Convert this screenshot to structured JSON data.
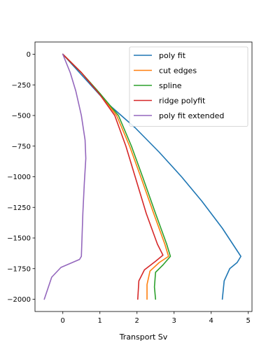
{
  "chart_data": {
    "type": "line",
    "title": "",
    "xlabel": "Transport Sv",
    "ylabel": "",
    "xlim": [
      -0.75,
      5.1
    ],
    "ylim": [
      -2100,
      100
    ],
    "xticks": [
      0,
      1,
      2,
      3,
      4,
      5
    ],
    "xtick_labels": [
      "0",
      "1",
      "2",
      "3",
      "4",
      "5"
    ],
    "yticks": [
      0,
      -250,
      -500,
      -750,
      -1000,
      -1250,
      -1500,
      -1750,
      -2000
    ],
    "ytick_labels": [
      "0",
      "−250",
      "−500",
      "−750",
      "−1000",
      "−1250",
      "−1500",
      "−1750",
      "−2000"
    ],
    "legend_position": "top-right",
    "series": [
      {
        "name": "poly fit",
        "color": "#1f77b4",
        "points": [
          [
            0,
            0
          ],
          [
            0.6,
            -200
          ],
          [
            1.2,
            -400
          ],
          [
            1.95,
            -600
          ],
          [
            2.6,
            -800
          ],
          [
            3.2,
            -1000
          ],
          [
            3.75,
            -1200
          ],
          [
            4.3,
            -1420
          ],
          [
            4.8,
            -1650
          ],
          [
            4.7,
            -1700
          ],
          [
            4.5,
            -1750
          ],
          [
            4.35,
            -1850
          ],
          [
            4.3,
            -2000
          ]
        ]
      },
      {
        "name": "cut edges",
        "color": "#ff7f0e",
        "points": [
          [
            0,
            0
          ],
          [
            0.5,
            -150
          ],
          [
            1.0,
            -320
          ],
          [
            1.45,
            -500
          ],
          [
            1.8,
            -750
          ],
          [
            2.1,
            -1000
          ],
          [
            2.45,
            -1300
          ],
          [
            2.75,
            -1550
          ],
          [
            2.85,
            -1650
          ],
          [
            2.6,
            -1700
          ],
          [
            2.35,
            -1770
          ],
          [
            2.27,
            -1880
          ],
          [
            2.27,
            -2000
          ]
        ]
      },
      {
        "name": "spline",
        "color": "#2ca02c",
        "points": [
          [
            0,
            0
          ],
          [
            0.5,
            -150
          ],
          [
            1.0,
            -320
          ],
          [
            1.5,
            -500
          ],
          [
            1.85,
            -750
          ],
          [
            2.15,
            -1000
          ],
          [
            2.5,
            -1300
          ],
          [
            2.8,
            -1550
          ],
          [
            2.9,
            -1650
          ],
          [
            2.7,
            -1720
          ],
          [
            2.5,
            -1780
          ],
          [
            2.47,
            -1900
          ],
          [
            2.5,
            -2000
          ]
        ]
      },
      {
        "name": "ridge polyfit",
        "color": "#d62728",
        "points": [
          [
            0,
            0
          ],
          [
            0.5,
            -150
          ],
          [
            1.0,
            -330
          ],
          [
            1.4,
            -500
          ],
          [
            1.7,
            -750
          ],
          [
            1.95,
            -1000
          ],
          [
            2.25,
            -1300
          ],
          [
            2.55,
            -1550
          ],
          [
            2.7,
            -1640
          ],
          [
            2.5,
            -1690
          ],
          [
            2.2,
            -1760
          ],
          [
            2.05,
            -1850
          ],
          [
            2.02,
            -2000
          ]
        ]
      },
      {
        "name": "poly fit extended",
        "color": "#9467bd",
        "points": [
          [
            0,
            0
          ],
          [
            0.2,
            -150
          ],
          [
            0.35,
            -300
          ],
          [
            0.5,
            -500
          ],
          [
            0.6,
            -700
          ],
          [
            0.62,
            -850
          ],
          [
            0.58,
            -1050
          ],
          [
            0.54,
            -1300
          ],
          [
            0.5,
            -1650
          ],
          [
            0.45,
            -1675
          ],
          [
            -0.05,
            -1740
          ],
          [
            -0.3,
            -1820
          ],
          [
            -0.5,
            -2000
          ]
        ]
      }
    ]
  }
}
